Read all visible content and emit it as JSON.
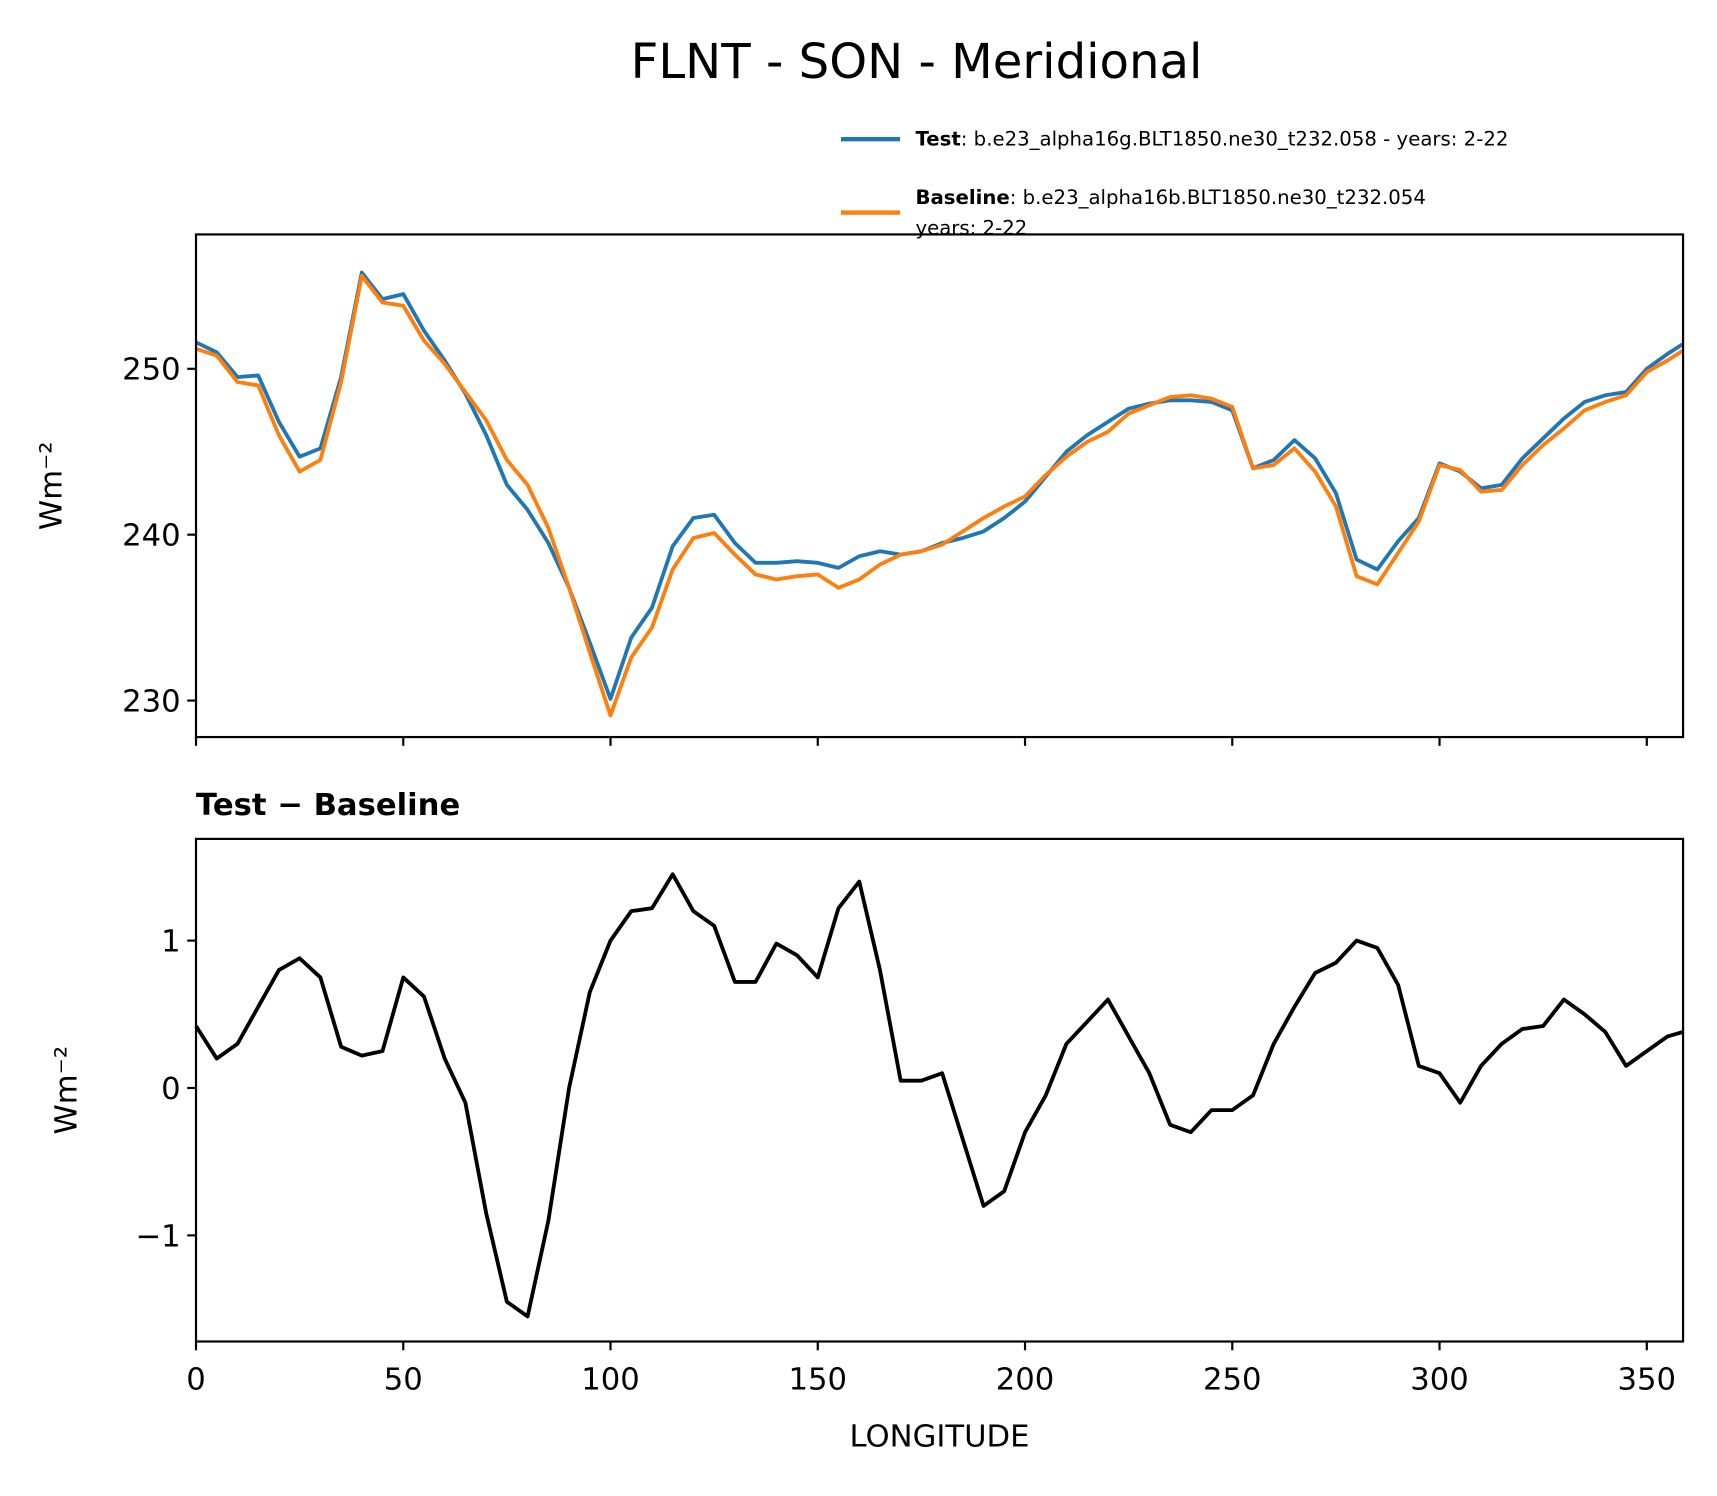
{
  "chart_data": [
    {
      "type": "line",
      "title": "FLNT - SON - Meridional",
      "ylabel": "Wm⁻²",
      "x": [
        0,
        5,
        10,
        15,
        20,
        25,
        30,
        35,
        40,
        45,
        50,
        55,
        60,
        65,
        70,
        75,
        80,
        85,
        90,
        95,
        100,
        105,
        110,
        115,
        120,
        125,
        130,
        135,
        140,
        145,
        150,
        155,
        160,
        165,
        170,
        175,
        180,
        185,
        190,
        195,
        200,
        205,
        210,
        215,
        220,
        225,
        230,
        235,
        240,
        245,
        250,
        255,
        260,
        265,
        270,
        275,
        280,
        285,
        290,
        295,
        300,
        305,
        310,
        315,
        320,
        325,
        330,
        335,
        340,
        345,
        350,
        355,
        358.75
      ],
      "series": [
        {
          "name": "Test",
          "description": [
            ": b.e23_alpha16g.BLT1850.ne30_t232.058 - years: 2-22"
          ],
          "color": "#1f77b4",
          "values": [
            251.6,
            251.0,
            249.5,
            249.6,
            246.8,
            244.7,
            245.2,
            249.5,
            255.8,
            254.2,
            254.5,
            252.3,
            250.5,
            248.5,
            246.0,
            243.0,
            241.5,
            239.5,
            236.8,
            233.5,
            230.1,
            233.8,
            235.6,
            239.3,
            241.0,
            241.2,
            239.5,
            238.3,
            238.3,
            238.4,
            238.3,
            238.0,
            238.7,
            239.0,
            238.8,
            239.0,
            239.5,
            239.8,
            240.2,
            241.0,
            242.0,
            243.5,
            245.0,
            246.0,
            246.8,
            247.6,
            247.9,
            248.1,
            248.1,
            248.0,
            247.5,
            244.0,
            244.5,
            245.7,
            244.6,
            242.5,
            238.5,
            237.9,
            239.6,
            241.0,
            244.3,
            243.8,
            242.8,
            243.0,
            244.6,
            245.8,
            247.0,
            248.0,
            248.4,
            248.6,
            250.0,
            250.9,
            251.5
          ]
        },
        {
          "name": "Baseline",
          "description": [
            ": b.e23_alpha16b.BLT1850.ne30_t232.054",
            "years: 2-22"
          ],
          "color": "#ff7f0e",
          "values": [
            251.2,
            250.8,
            249.2,
            249.0,
            246.0,
            243.8,
            244.5,
            249.2,
            255.6,
            254.0,
            253.8,
            251.7,
            250.3,
            248.6,
            246.9,
            244.5,
            243.0,
            240.4,
            236.8,
            232.9,
            229.1,
            232.6,
            234.4,
            237.9,
            239.8,
            240.1,
            238.8,
            237.6,
            237.3,
            237.5,
            237.6,
            236.8,
            237.3,
            238.2,
            238.8,
            239.0,
            239.4,
            240.2,
            241.0,
            241.7,
            242.3,
            243.6,
            244.7,
            245.6,
            246.2,
            247.3,
            247.8,
            248.3,
            248.4,
            248.2,
            247.7,
            244.0,
            244.2,
            245.2,
            243.8,
            241.7,
            237.5,
            237.0,
            238.9,
            240.8,
            244.2,
            243.9,
            242.6,
            242.7,
            244.2,
            245.4,
            246.4,
            247.5,
            248.0,
            248.4,
            249.8,
            250.5,
            251.1
          ]
        }
      ],
      "xlim": [
        0,
        358.75
      ],
      "xticks": [
        0,
        50,
        100,
        150,
        200,
        250,
        300,
        350
      ],
      "ylim": [
        227.8,
        258.1
      ],
      "yticks": [
        230,
        240,
        250
      ]
    },
    {
      "type": "line",
      "title": "Test − Baseline",
      "ylabel": "Wm⁻²",
      "xlabel": "LONGITUDE",
      "x": [
        0,
        5,
        10,
        15,
        20,
        25,
        30,
        35,
        40,
        45,
        50,
        55,
        60,
        65,
        70,
        75,
        80,
        85,
        90,
        95,
        100,
        105,
        110,
        115,
        120,
        125,
        130,
        135,
        140,
        145,
        150,
        155,
        160,
        165,
        170,
        175,
        180,
        185,
        190,
        195,
        200,
        205,
        210,
        215,
        220,
        225,
        230,
        235,
        240,
        245,
        250,
        255,
        260,
        265,
        270,
        275,
        280,
        285,
        290,
        295,
        300,
        305,
        310,
        315,
        320,
        325,
        330,
        335,
        340,
        345,
        350,
        355,
        358.75
      ],
      "series": [
        {
          "color": "#000000",
          "values": [
            0.42,
            0.2,
            0.3,
            0.55,
            0.8,
            0.88,
            0.75,
            0.28,
            0.22,
            0.25,
            0.75,
            0.62,
            0.2,
            -0.1,
            -0.85,
            -1.45,
            -1.55,
            -0.9,
            0.0,
            0.65,
            1.0,
            1.2,
            1.22,
            1.45,
            1.2,
            1.1,
            0.72,
            0.72,
            0.98,
            0.9,
            0.75,
            1.22,
            1.4,
            0.8,
            0.05,
            0.05,
            0.1,
            -0.35,
            -0.8,
            -0.7,
            -0.3,
            -0.05,
            0.3,
            0.45,
            0.6,
            0.35,
            0.1,
            -0.25,
            -0.3,
            -0.15,
            -0.15,
            -0.05,
            0.3,
            0.55,
            0.78,
            0.85,
            1.0,
            0.95,
            0.7,
            0.15,
            0.1,
            -0.1,
            0.15,
            0.3,
            0.4,
            0.42,
            0.6,
            0.5,
            0.38,
            0.15,
            0.25,
            0.35,
            0.38
          ]
        }
      ],
      "xlim": [
        0,
        358.75
      ],
      "xticks": [
        0,
        50,
        100,
        150,
        200,
        250,
        300,
        350
      ],
      "ylim": [
        -1.72,
        1.69
      ],
      "yticks": [
        {
          "value": -1,
          "label": "−1"
        },
        0,
        1
      ]
    }
  ]
}
